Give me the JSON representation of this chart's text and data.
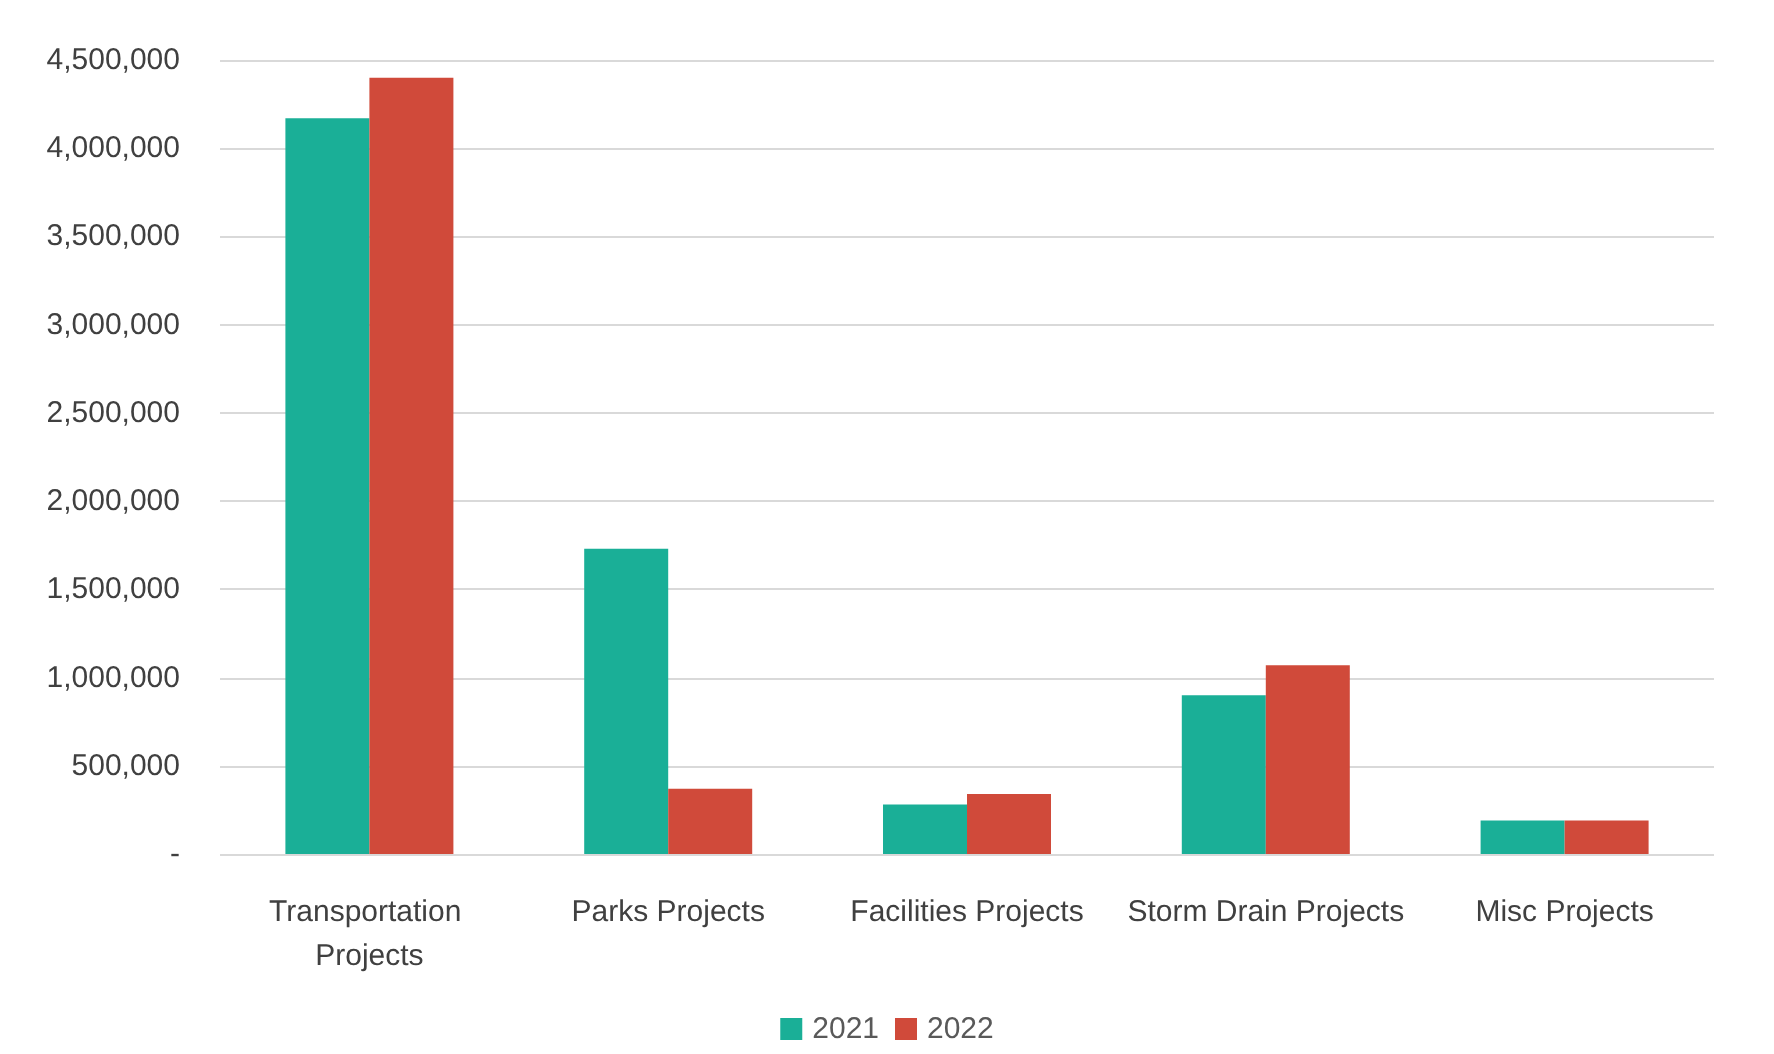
{
  "chart_data": {
    "type": "bar",
    "categories": [
      "Transportation Projects",
      "Parks Projects",
      "Facilities Projects",
      "Storm Drain Projects",
      "Misc Projects"
    ],
    "series": [
      {
        "name": "2021",
        "color": "#1aaf97",
        "values": [
          4170000,
          1730000,
          280000,
          900000,
          190000
        ]
      },
      {
        "name": "2022",
        "color": "#d04a3a",
        "values": [
          4400000,
          370000,
          340000,
          1070000,
          190000
        ]
      }
    ],
    "ylim": [
      0,
      4500000
    ],
    "yticks": [
      {
        "value": 0,
        "label": "-"
      },
      {
        "value": 500000,
        "label": "500,000"
      },
      {
        "value": 1000000,
        "label": "1,000,000"
      },
      {
        "value": 1500000,
        "label": "1,500,000"
      },
      {
        "value": 2000000,
        "label": "2,000,000"
      },
      {
        "value": 2500000,
        "label": "2,500,000"
      },
      {
        "value": 3000000,
        "label": "3,000,000"
      },
      {
        "value": 3500000,
        "label": "3,500,000"
      },
      {
        "value": 4000000,
        "label": "4,000,000"
      },
      {
        "value": 4500000,
        "label": "4,500,000"
      }
    ],
    "grid": "y",
    "legend": "bottom"
  }
}
